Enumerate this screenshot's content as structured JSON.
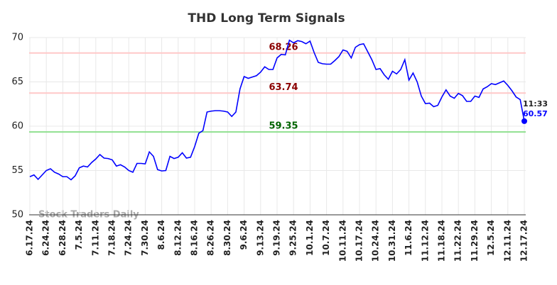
{
  "chart_data": {
    "type": "line",
    "title": "THD Long Term Signals",
    "categories": [
      "6.17.24",
      null,
      null,
      null,
      "6.24.24",
      null,
      null,
      null,
      "6.28.24",
      null,
      null,
      null,
      "7.5.24",
      null,
      null,
      null,
      "7.11.24",
      null,
      null,
      null,
      "7.18.24",
      null,
      null,
      null,
      "7.24.24",
      null,
      null,
      null,
      "7.30.24",
      null,
      null,
      null,
      "8.6.24",
      null,
      null,
      null,
      "8.12.24",
      null,
      null,
      null,
      "8.16.24",
      null,
      null,
      null,
      "8.26.24",
      null,
      null,
      null,
      "8.30.24",
      null,
      null,
      null,
      "9.6.24",
      null,
      null,
      null,
      "9.13.24",
      null,
      null,
      null,
      "9.19.24",
      null,
      null,
      null,
      "9.25.24",
      null,
      null,
      null,
      "10.1.24",
      null,
      null,
      null,
      "10.7.24",
      null,
      null,
      null,
      "10.11.24",
      null,
      null,
      null,
      "10.17.24",
      null,
      null,
      null,
      "10.24.24",
      null,
      null,
      null,
      "10.31.24",
      null,
      null,
      null,
      "11.6.24",
      null,
      null,
      null,
      "11.12.24",
      null,
      null,
      null,
      "11.18.24",
      null,
      null,
      null,
      "11.22.24",
      null,
      null,
      null,
      "11.29.24",
      null,
      null,
      null,
      "12.5.24",
      null,
      null,
      null,
      "12.11.24",
      null,
      null,
      null,
      "12.17.24"
    ],
    "series": [
      {
        "color": "#0000ff",
        "values": [
          54.3,
          54.5,
          54.0,
          54.5,
          55.0,
          55.2,
          54.8,
          54.6,
          54.3,
          54.3,
          53.95,
          54.4,
          55.3,
          55.5,
          55.4,
          55.9,
          56.3,
          56.8,
          56.4,
          56.35,
          56.2,
          55.5,
          55.65,
          55.4,
          55.0,
          54.8,
          55.8,
          55.8,
          55.75,
          57.1,
          56.6,
          55.1,
          54.95,
          55.0,
          56.6,
          56.35,
          56.5,
          57.0,
          56.4,
          56.5,
          57.7,
          59.2,
          59.5,
          61.6,
          61.7,
          61.75,
          61.75,
          61.7,
          61.6,
          61.1,
          61.6,
          64.2,
          65.6,
          65.4,
          65.55,
          65.7,
          66.1,
          66.7,
          66.4,
          66.4,
          67.7,
          68.1,
          68.05,
          69.7,
          69.4,
          69.65,
          69.55,
          69.3,
          69.6,
          68.3,
          67.2,
          67.05,
          67.0,
          67.0,
          67.4,
          67.85,
          68.6,
          68.45,
          67.7,
          68.9,
          69.2,
          69.3,
          68.4,
          67.5,
          66.4,
          66.5,
          65.8,
          65.3,
          66.2,
          65.9,
          66.4,
          67.5,
          65.2,
          66.0,
          65.0,
          63.4,
          62.55,
          62.6,
          62.2,
          62.35,
          63.3,
          64.1,
          63.4,
          63.15,
          63.7,
          63.45,
          62.8,
          62.8,
          63.4,
          63.25,
          64.2,
          64.45,
          64.8,
          64.7,
          64.9,
          65.1,
          64.6,
          64.0,
          63.3,
          63.0,
          60.57
        ]
      }
    ],
    "hlines": [
      {
        "value": 68.26,
        "color": "#ffc8c8",
        "label_color": "#8b0000"
      },
      {
        "value": 63.74,
        "color": "#ffc8c8",
        "label_color": "#8b0000"
      },
      {
        "value": 59.35,
        "color": "#90e090",
        "label_color": "#006400"
      }
    ],
    "annotation": "11:33",
    "watermark": "Stock Traders Daily",
    "ylim": [
      50,
      70
    ],
    "yticks": [
      50,
      55,
      60,
      65,
      70
    ],
    "grid": true
  }
}
